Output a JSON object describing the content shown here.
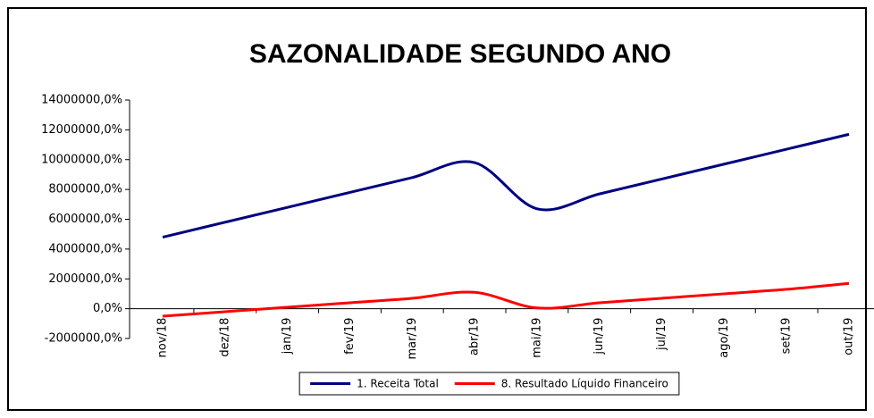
{
  "chart_data": {
    "type": "line",
    "title": "SAZONALIDADE SEGUNDO ANO",
    "categories": [
      "nov/18",
      "dez/18",
      "jan/19",
      "fev/19",
      "mar/19",
      "abr/19",
      "mai/19",
      "jun/19",
      "jul/19",
      "ago/19",
      "set/19",
      "out/19"
    ],
    "series": [
      {
        "name": "1. Receita Total",
        "color": "#000080",
        "values": [
          4800000,
          5800000,
          6800000,
          7800000,
          8800000,
          9800000,
          6700000,
          7700000,
          8700000,
          9700000,
          10700000,
          11700000
        ]
      },
      {
        "name": "8. Resultado Líquido Financeiro",
        "color": "#ff0000",
        "values": [
          -500000,
          -200000,
          100000,
          400000,
          700000,
          1100000,
          50000,
          400000,
          700000,
          1000000,
          1300000,
          1700000
        ]
      }
    ],
    "ylim": [
      -2000000,
      14000000
    ],
    "yticks": [
      {
        "value": -2000000,
        "label": "-2000000,0%"
      },
      {
        "value": 0,
        "label": "0,0%"
      },
      {
        "value": 2000000,
        "label": "2000000,0%"
      },
      {
        "value": 4000000,
        "label": "4000000,0%"
      },
      {
        "value": 6000000,
        "label": "6000000,0%"
      },
      {
        "value": 8000000,
        "label": "8000000,0%"
      },
      {
        "value": 10000000,
        "label": "10000000,0%"
      },
      {
        "value": 12000000,
        "label": "12000000,0%"
      },
      {
        "value": 14000000,
        "label": "14000000,0%"
      }
    ],
    "smooth": true,
    "legend": "bottom"
  }
}
